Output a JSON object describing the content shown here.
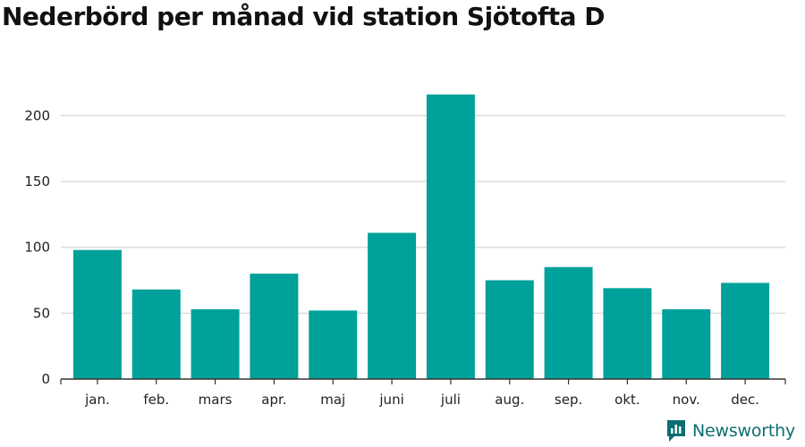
{
  "title": "Nederbörd per månad vid station Sjötofta D",
  "brand": "Newsworthy",
  "colors": {
    "bar": "#00a19a",
    "grid": "#dddddd",
    "axis": "#333333",
    "brand": "#0d6e72"
  },
  "chart_data": {
    "type": "bar",
    "categories": [
      "jan.",
      "feb.",
      "mars",
      "apr.",
      "maj",
      "juni",
      "juli",
      "aug.",
      "sep.",
      "okt.",
      "nov.",
      "dec."
    ],
    "values": [
      98,
      68,
      53,
      80,
      52,
      111,
      216,
      75,
      85,
      69,
      53,
      73
    ],
    "yticks": [
      0,
      50,
      100,
      150,
      200
    ],
    "ylim": [
      0,
      228
    ],
    "grid": true
  }
}
